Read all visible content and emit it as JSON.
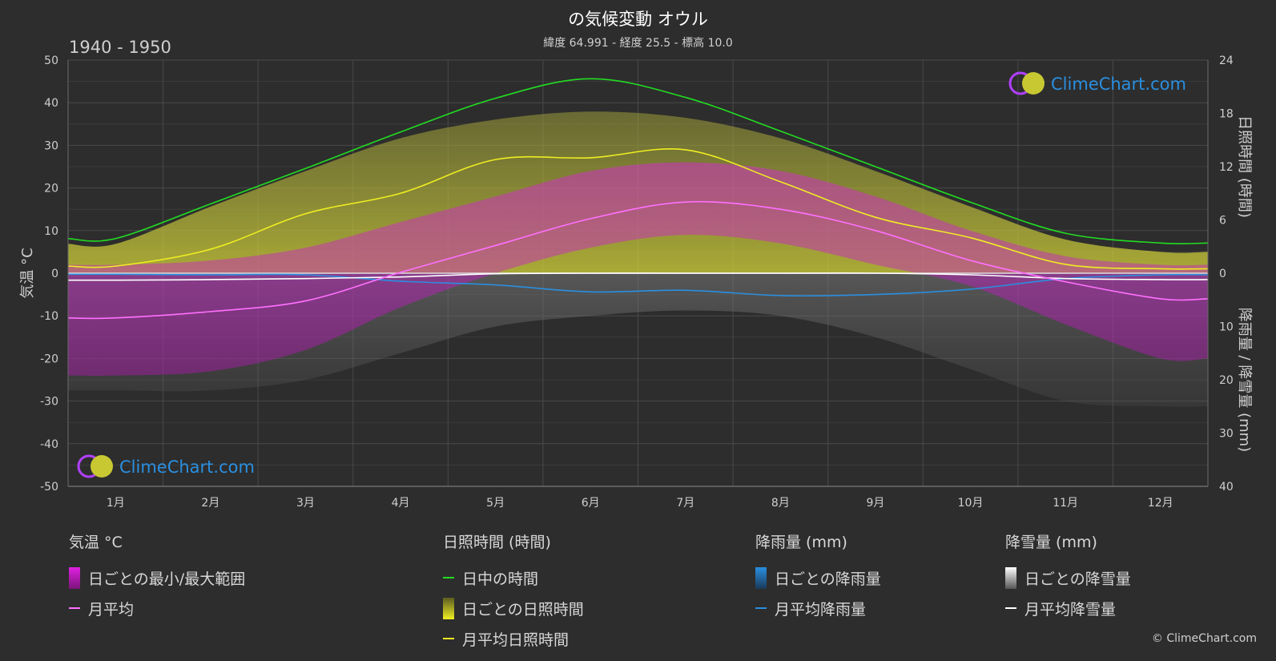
{
  "header": {
    "title": "の気候変動 オウル",
    "subtitle": "緯度 64.991 - 経度 25.5 - 標高 10.0",
    "period": "1940 - 1950"
  },
  "watermark": "ClimeChart.com",
  "copyright": "© ClimeChart.com",
  "colors": {
    "background": "#2d2d2d",
    "grid": "#4a4a4a",
    "temp_range": "#e020e0",
    "temp_avg": "#ff70ff",
    "daylight": "#22dd22",
    "sunshine_fill": "#c8c832",
    "sunshine_avg": "#eeee22",
    "rain_fill": "#1e7ecc",
    "rain_avg": "#2a8fe0",
    "snow_fill": "#aaaaaa",
    "snow_avg": "#ffffff"
  },
  "legend": {
    "temperature": {
      "title": "気温 °C",
      "range_label": "日ごとの最小/最大範囲",
      "avg_label": "月平均"
    },
    "sunshine": {
      "title": "日照時間 (時間)",
      "daylight_label": "日中の時間",
      "daily_label": "日ごとの日照時間",
      "avg_label": "月平均日照時間"
    },
    "rain": {
      "title": "降雨量 (mm)",
      "daily_label": "日ごとの降雨量",
      "avg_label": "月平均降雨量"
    },
    "snow": {
      "title": "降雪量 (mm)",
      "daily_label": "日ごとの降雪量",
      "avg_label": "月平均降雪量"
    }
  },
  "chart_data": {
    "type": "line",
    "x_categories": [
      "1月",
      "2月",
      "3月",
      "4月",
      "5月",
      "6月",
      "7月",
      "8月",
      "9月",
      "10月",
      "11月",
      "12月"
    ],
    "left_axis": {
      "label": "気温 °C",
      "range": [
        -50,
        50
      ],
      "ticks": [
        50,
        40,
        30,
        20,
        10,
        0,
        -10,
        -20,
        -30,
        -40,
        -50
      ]
    },
    "right_axis_top": {
      "label": "日照時間 (時間)",
      "range": [
        0,
        24
      ],
      "ticks": [
        24,
        18,
        12,
        6,
        0
      ]
    },
    "right_axis_bottom": {
      "label": "降雨量 / 降雪量 (mm)",
      "range": [
        0,
        40
      ],
      "ticks": [
        10,
        20,
        30,
        40
      ]
    },
    "grid": true,
    "series": [
      {
        "name": "日中の時間",
        "unit": "hours",
        "values": [
          3.9,
          7.8,
          11.8,
          15.9,
          19.7,
          21.9,
          19.8,
          16.0,
          12.0,
          8.0,
          4.5,
          3.4
        ]
      },
      {
        "name": "月平均日照時間",
        "unit": "hours",
        "values": [
          0.8,
          2.7,
          6.7,
          9.0,
          12.8,
          13.0,
          13.9,
          10.3,
          6.3,
          4.0,
          1.0,
          0.5
        ]
      },
      {
        "name": "月平均",
        "unit": "°C",
        "values": [
          -10.5,
          -9.0,
          -6.5,
          0.2,
          6.5,
          12.8,
          16.7,
          15.0,
          10.0,
          3.0,
          -2.0,
          -6.0
        ]
      },
      {
        "name": "月平均降雨量",
        "unit": "mm",
        "values": [
          0.2,
          0.3,
          0.3,
          1.5,
          2.2,
          3.5,
          3.2,
          4.2,
          4.0,
          3.0,
          1.0,
          0.3
        ]
      },
      {
        "name": "月平均降雪量",
        "unit": "mm",
        "values": [
          1.3,
          1.2,
          1.0,
          0.7,
          0.1,
          0.0,
          0.0,
          0.0,
          0.0,
          0.3,
          1.0,
          1.2
        ]
      }
    ],
    "daily_sunshine_envelope_hours": [
      3.3,
      7.5,
      11.5,
      15.2,
      17.3,
      18.2,
      17.5,
      15.2,
      11.5,
      7.5,
      3.8,
      2.4
    ],
    "daily_temp_range_c": [
      [
        -24,
        2
      ],
      [
        -23,
        3
      ],
      [
        -18,
        6
      ],
      [
        -8,
        12
      ],
      [
        0,
        18
      ],
      [
        6,
        24
      ],
      [
        9,
        26
      ],
      [
        7,
        24
      ],
      [
        2,
        18
      ],
      [
        -3,
        10
      ],
      [
        -12,
        4
      ],
      [
        -20,
        2
      ]
    ],
    "daily_precip_envelope_mm": [
      22,
      22,
      20,
      15,
      10,
      8,
      7,
      8,
      12,
      18,
      24,
      25
    ]
  }
}
